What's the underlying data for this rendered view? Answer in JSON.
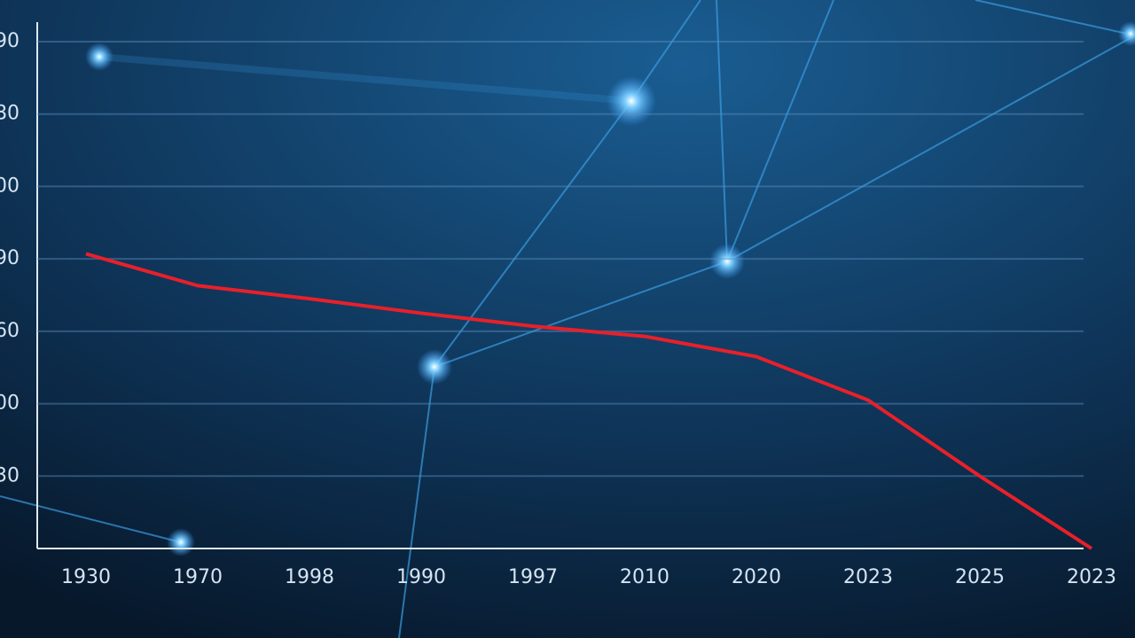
{
  "chart_data": {
    "type": "line",
    "categories": [
      "1930",
      "1970",
      "1998",
      "1990",
      "1997",
      "2010",
      "2020",
      "2023",
      "2025",
      "2023"
    ],
    "series": [
      {
        "color": "#e8202a",
        "values": [
          4.07,
          3.63,
          3.45,
          3.25,
          3.07,
          2.93,
          2.65,
          2.05,
          1.0,
          0
        ]
      }
    ],
    "ylim": [
      0,
      7
    ],
    "yticks": [
      {
        "value": 1,
        "label": "30"
      },
      {
        "value": 2,
        "label": "00"
      },
      {
        "value": 3,
        "label": "60"
      },
      {
        "value": 4,
        "label": "90"
      },
      {
        "value": 5,
        "label": "00"
      },
      {
        "value": 6,
        "label": "80"
      },
      {
        "value": 7,
        "label": "90"
      }
    ],
    "grid": true
  }
}
